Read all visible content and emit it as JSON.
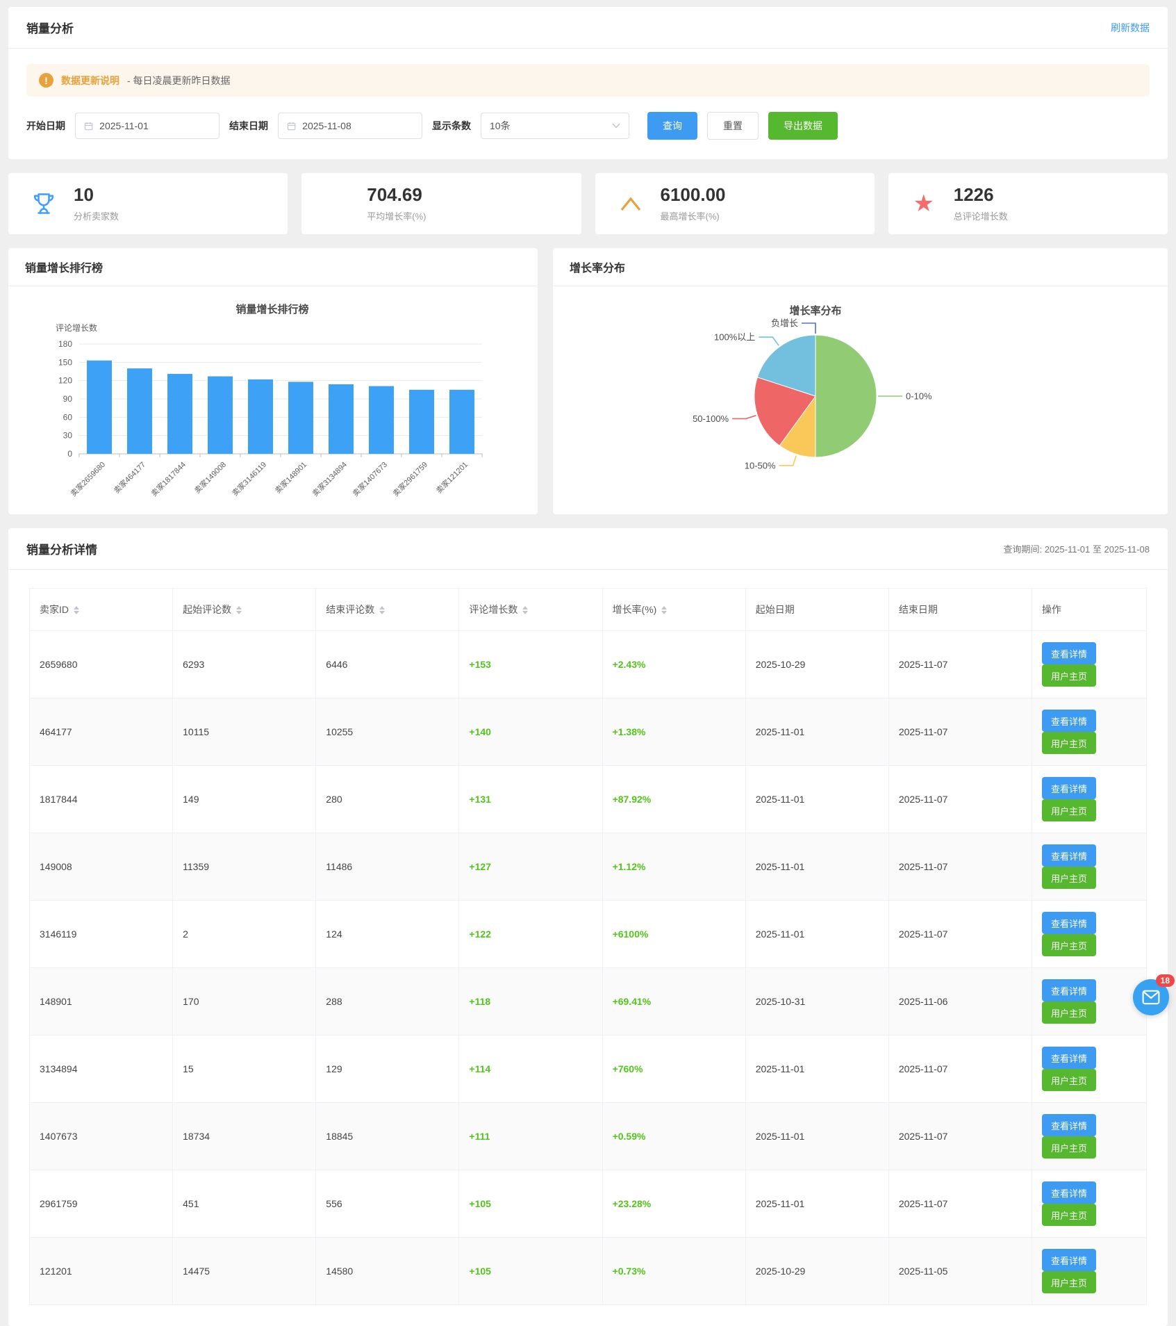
{
  "header": {
    "title": "销量分析",
    "refresh_label": "刷新数据"
  },
  "notice": {
    "title": "数据更新说明",
    "text": "- 每日凌晨更新昨日数据"
  },
  "filters": {
    "start_label": "开始日期",
    "start_value": "2025-11-01",
    "end_label": "结束日期",
    "end_value": "2025-11-08",
    "count_label": "显示条数",
    "count_value": "10条",
    "query_label": "查询",
    "reset_label": "重置",
    "export_label": "导出数据"
  },
  "stats": [
    {
      "value": "10",
      "label": "分析卖家数",
      "icon": "trophy-icon",
      "color": "#409EFF"
    },
    {
      "value": "704.69",
      "label": "平均增长率(%)",
      "icon": "",
      "color": ""
    },
    {
      "value": "6100.00",
      "label": "最高增长率(%)",
      "icon": "caret-up-icon",
      "color": "#E6A23C"
    },
    {
      "value": "1226",
      "label": "总评论增长数",
      "icon": "star-icon",
      "color": "#F56C6C"
    }
  ],
  "charts": {
    "bar_card_title": "销量增长排行榜",
    "pie_card_title": "增长率分布"
  },
  "chart_data": [
    {
      "type": "bar",
      "title": "销量增长排行榜",
      "ylabel": "评论增长数",
      "categories": [
        "卖家2659680",
        "卖家464177",
        "卖家1817844",
        "卖家149008",
        "卖家3146119",
        "卖家148901",
        "卖家3134894",
        "卖家1407673",
        "卖家2961759",
        "卖家121201"
      ],
      "values": [
        153,
        140,
        131,
        127,
        122,
        118,
        114,
        111,
        105,
        105
      ],
      "ylim": [
        0,
        180
      ],
      "ytick_step": 30,
      "bar_color": "#3da1f5",
      "grid": true,
      "legend": "none"
    },
    {
      "type": "pie",
      "title": "增长率分布",
      "slices": [
        {
          "label": "负增长",
          "value": 0,
          "pct": 0,
          "color": "#5470c6"
        },
        {
          "label": "0-10%",
          "value": 5,
          "pct": 50,
          "color": "#91cc75"
        },
        {
          "label": "10-50%",
          "value": 1,
          "pct": 10,
          "color": "#fac858"
        },
        {
          "label": "50-100%",
          "value": 2,
          "pct": 20,
          "color": "#ee6666"
        },
        {
          "label": "100%以上",
          "value": 2,
          "pct": 20,
          "color": "#73c0de"
        }
      ],
      "legend_position": "labels-with-leader-lines"
    }
  ],
  "table": {
    "section_title": "销量分析详情",
    "period_text": "查询期间: 2025-11-01 至 2025-11-08",
    "columns": [
      {
        "label": "卖家ID",
        "sortable": true
      },
      {
        "label": "起始评论数",
        "sortable": true
      },
      {
        "label": "结束评论数",
        "sortable": true
      },
      {
        "label": "评论增长数",
        "sortable": true
      },
      {
        "label": "增长率(%)",
        "sortable": true
      },
      {
        "label": "起始日期",
        "sortable": false
      },
      {
        "label": "结束日期",
        "sortable": false
      },
      {
        "label": "操作",
        "sortable": false
      }
    ],
    "action_view": "查看详情",
    "action_profile": "用户主页",
    "rows": [
      {
        "seller_id": "2659680",
        "start_count": "6293",
        "end_count": "6446",
        "growth": "+153",
        "rate": "+2.43%",
        "start_date": "2025-10-29",
        "end_date": "2025-11-07"
      },
      {
        "seller_id": "464177",
        "start_count": "10115",
        "end_count": "10255",
        "growth": "+140",
        "rate": "+1.38%",
        "start_date": "2025-11-01",
        "end_date": "2025-11-07"
      },
      {
        "seller_id": "1817844",
        "start_count": "149",
        "end_count": "280",
        "growth": "+131",
        "rate": "+87.92%",
        "start_date": "2025-11-01",
        "end_date": "2025-11-07"
      },
      {
        "seller_id": "149008",
        "start_count": "11359",
        "end_count": "11486",
        "growth": "+127",
        "rate": "+1.12%",
        "start_date": "2025-11-01",
        "end_date": "2025-11-07"
      },
      {
        "seller_id": "3146119",
        "start_count": "2",
        "end_count": "124",
        "growth": "+122",
        "rate": "+6100%",
        "start_date": "2025-11-01",
        "end_date": "2025-11-07"
      },
      {
        "seller_id": "148901",
        "start_count": "170",
        "end_count": "288",
        "growth": "+118",
        "rate": "+69.41%",
        "start_date": "2025-10-31",
        "end_date": "2025-11-06"
      },
      {
        "seller_id": "3134894",
        "start_count": "15",
        "end_count": "129",
        "growth": "+114",
        "rate": "+760%",
        "start_date": "2025-11-01",
        "end_date": "2025-11-07"
      },
      {
        "seller_id": "1407673",
        "start_count": "18734",
        "end_count": "18845",
        "growth": "+111",
        "rate": "+0.59%",
        "start_date": "2025-11-01",
        "end_date": "2025-11-07"
      },
      {
        "seller_id": "2961759",
        "start_count": "451",
        "end_count": "556",
        "growth": "+105",
        "rate": "+23.28%",
        "start_date": "2025-11-01",
        "end_date": "2025-11-07"
      },
      {
        "seller_id": "121201",
        "start_count": "14475",
        "end_count": "14580",
        "growth": "+105",
        "rate": "+0.73%",
        "start_date": "2025-10-29",
        "end_date": "2025-11-05"
      }
    ]
  },
  "floating": {
    "badge": "18"
  }
}
